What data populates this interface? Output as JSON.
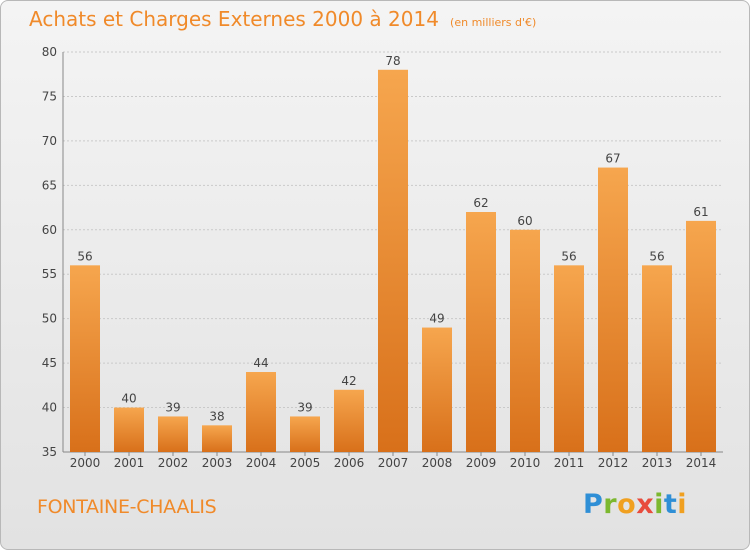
{
  "header": {
    "title": "Achats et Charges Externes 2000 à 2014",
    "subtitle": "(en milliers d'€)"
  },
  "footer": {
    "commune": "FONTAINE-CHAALIS",
    "logo_text": "Proxiti"
  },
  "colors": {
    "accent": "#f08a2a",
    "bar_top": "#f6a64e",
    "bar_bottom": "#d8701a"
  },
  "chart_data": {
    "type": "bar",
    "title": "Achats et Charges Externes 2000 à 2014",
    "subtitle": "(en milliers d'€)",
    "xlabel": "",
    "ylabel": "",
    "categories": [
      "2000",
      "2001",
      "2002",
      "2003",
      "2004",
      "2005",
      "2006",
      "2007",
      "2008",
      "2009",
      "2010",
      "2011",
      "2012",
      "2013",
      "2014"
    ],
    "values": [
      56,
      40,
      39,
      38,
      44,
      39,
      42,
      78,
      49,
      62,
      60,
      56,
      67,
      56,
      61
    ],
    "ylim": [
      35,
      80
    ],
    "yticks": [
      35,
      40,
      45,
      50,
      55,
      60,
      65,
      70,
      75,
      80
    ],
    "grid": true,
    "legend": "none"
  }
}
